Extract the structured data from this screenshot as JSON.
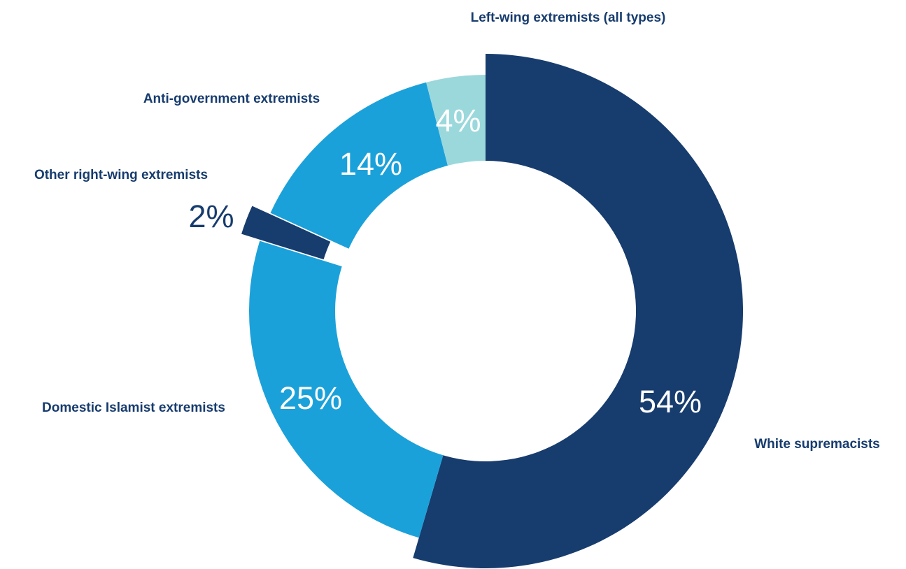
{
  "chart_data": {
    "type": "pie",
    "subtype": "donut",
    "title": "",
    "categories": [
      "White supremacists",
      "Domestic Islamist extremists",
      "Other right-wing extremists",
      "Anti-government extremists",
      "Left-wing extremists (all types)"
    ],
    "values": [
      54,
      25,
      2,
      14,
      4
    ],
    "value_labels": [
      "54%",
      "25%",
      "2%",
      "14%",
      "4%"
    ],
    "exploded": [
      false,
      false,
      true,
      false,
      false
    ],
    "colors": [
      "#173c6e",
      "#1ba1da",
      "#173c6e",
      "#1ba1da",
      "#9bd8dc"
    ],
    "label_color": "#173c6e",
    "legend": "none (direct labels)"
  }
}
